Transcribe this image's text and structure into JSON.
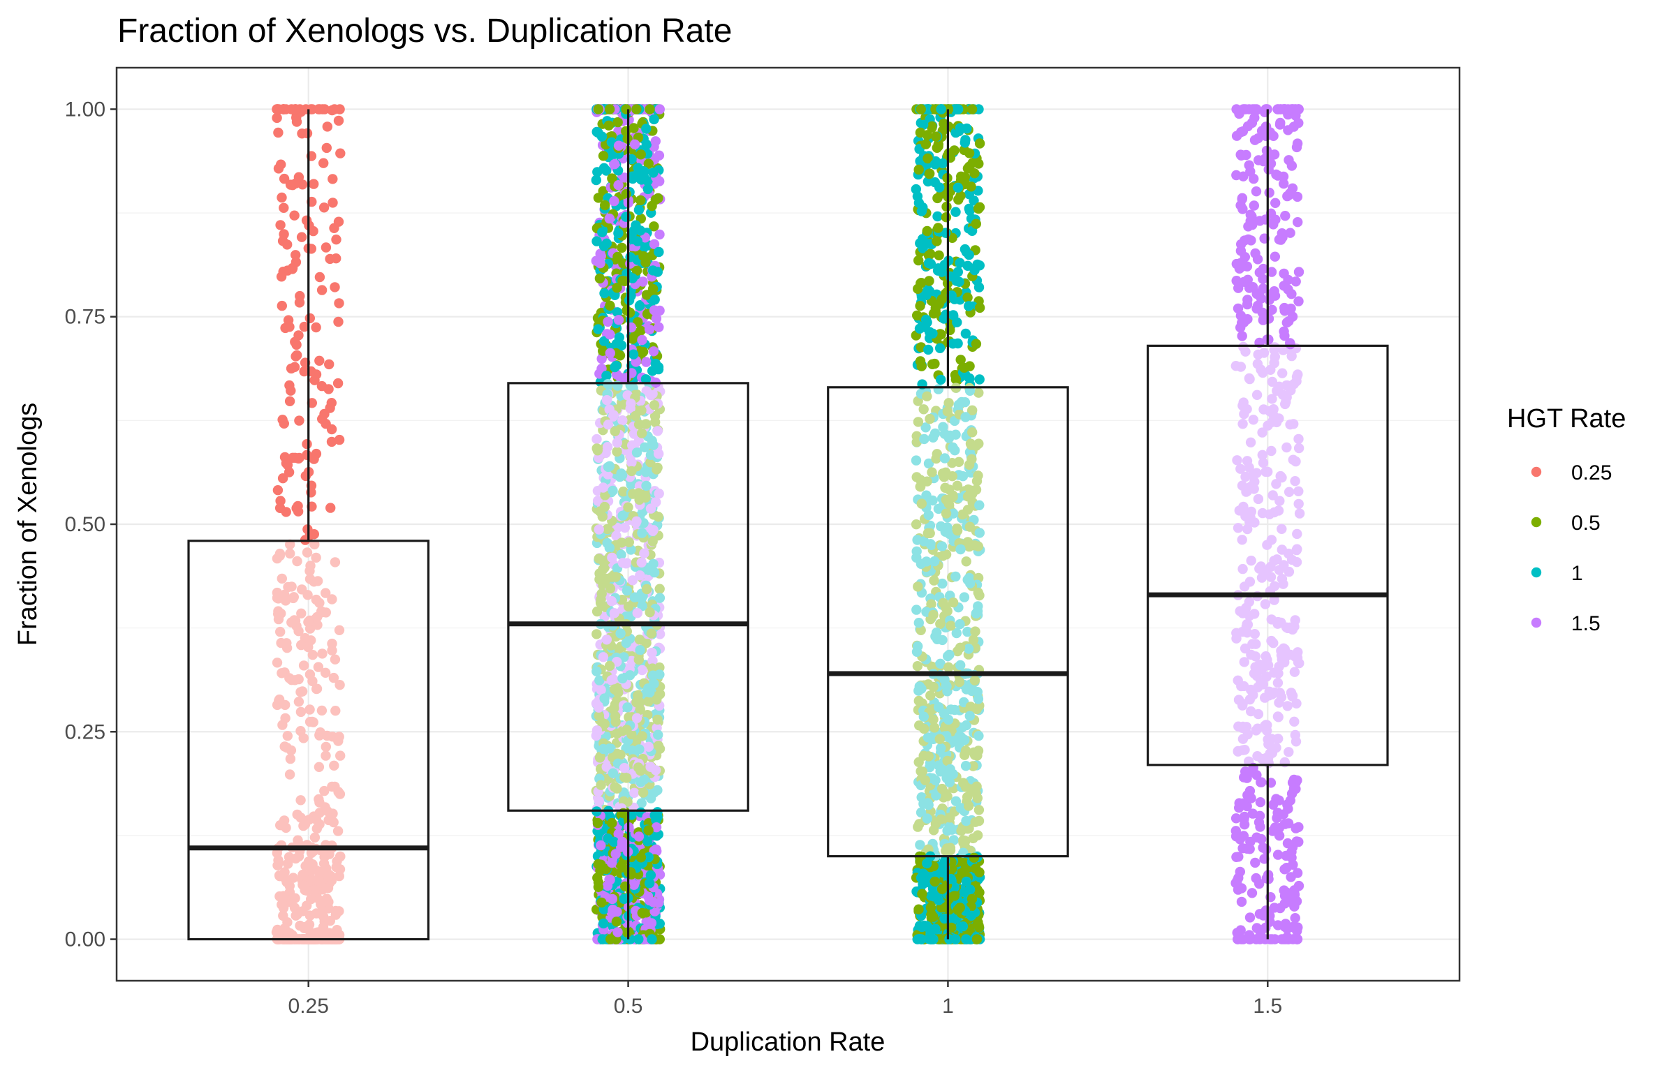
{
  "chart_data": {
    "type": "boxplot-jitter",
    "title": "Fraction of Xenologs vs. Duplication Rate",
    "xlabel": "Duplication Rate",
    "ylabel": "Fraction of Xenologs",
    "categories": [
      "0.25",
      "0.5",
      "1",
      "1.5"
    ],
    "ylim": [
      -0.05,
      1.05
    ],
    "yticks": [
      0.0,
      0.25,
      0.5,
      0.75,
      1.0
    ],
    "ytick_labels": [
      "0.00",
      "0.25",
      "0.50",
      "0.75",
      "1.00"
    ],
    "grid": true,
    "legend": {
      "title": "HGT Rate",
      "placement": "right",
      "entries": [
        {
          "label": "0.25",
          "color": "#F8766D"
        },
        {
          "label": "0.5",
          "color": "#7CAE00"
        },
        {
          "label": "1",
          "color": "#00BFC4"
        },
        {
          "label": "1.5",
          "color": "#C77CFF"
        }
      ]
    },
    "boxes": [
      {
        "category": "0.25",
        "min": 0.0,
        "q1": 0.0,
        "median": 0.11,
        "q3": 0.48,
        "max": 1.0
      },
      {
        "category": "0.5",
        "min": 0.0,
        "q1": 0.155,
        "median": 0.38,
        "q3": 0.67,
        "max": 1.0
      },
      {
        "category": "1",
        "min": 0.0,
        "q1": 0.1,
        "median": 0.32,
        "q3": 0.665,
        "max": 1.0
      },
      {
        "category": "1.5",
        "min": 0.0,
        "q1": 0.21,
        "median": 0.415,
        "q3": 0.715,
        "max": 1.0
      }
    ],
    "jitter_groups": [
      {
        "category": "0.25",
        "hgt_rates": [
          "0.25"
        ],
        "point_count": 600
      },
      {
        "category": "0.5",
        "hgt_rates": [
          "0.5",
          "1",
          "1.5"
        ],
        "point_count": 1800
      },
      {
        "category": "1",
        "hgt_rates": [
          "0.5",
          "1"
        ],
        "point_count": 1200
      },
      {
        "category": "1.5",
        "hgt_rates": [
          "1.5"
        ],
        "point_count": 600
      }
    ]
  }
}
